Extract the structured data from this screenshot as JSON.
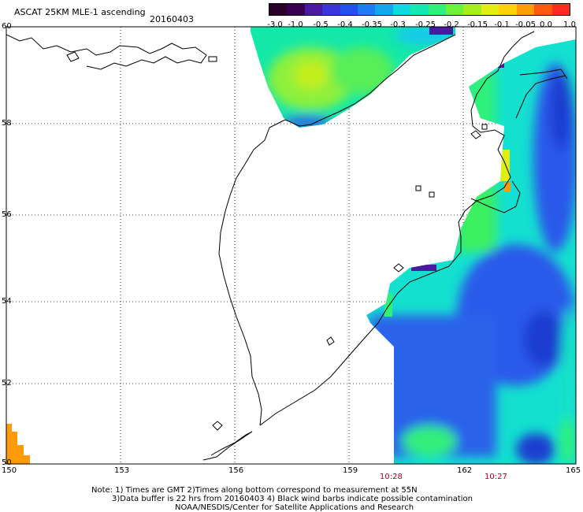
{
  "title": "ASCAT 25KM MLE-1 ascending",
  "date": "20160403",
  "colorbar": {
    "labels": [
      "-3.0",
      "-1.0",
      "-0.5",
      "-0.4",
      "-0.35",
      "-0.3",
      "-0.25",
      "-0.2",
      "-0.15",
      "-0.1",
      "-0.05",
      "0.0",
      "1.0"
    ],
    "colors": [
      "#2a0028",
      "#3a0050",
      "#4a1aa0",
      "#3a36d8",
      "#2450ec",
      "#1e7af0",
      "#13a8ee",
      "#0fd8e0",
      "#12e8b0",
      "#2ef07a",
      "#6cf23a",
      "#a6ef1c",
      "#e2ee12",
      "#ffd10a",
      "#ff9a08",
      "#ff5a10",
      "#ff2a20"
    ]
  },
  "axes": {
    "latitudes": [
      "60",
      "58",
      "56",
      "54",
      "52",
      "50"
    ],
    "longitudes": [
      "150",
      "153",
      "156",
      "159",
      "162",
      "165"
    ]
  },
  "times": [
    "10:28",
    "10:27"
  ],
  "notes": [
    "Note: 1) Times are GMT 2)Times along bottom correspond to measurement at 55N",
    "3)Data buffer is 22 hrs from 20160403 4) Black wind barbs indicate possible contamination",
    "NOAA/NESDIS/Center for Satellite Applications and Research"
  ]
}
